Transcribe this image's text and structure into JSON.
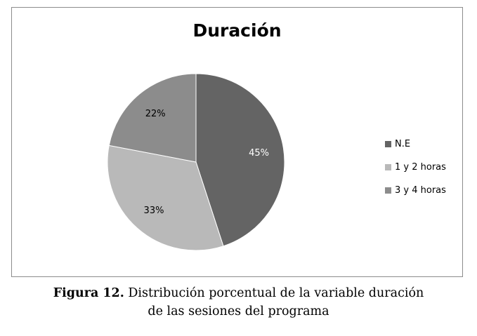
{
  "chart_data": {
    "type": "pie",
    "title": "Duración",
    "categories": [
      "N.E",
      "1 y 2 horas",
      "3 y 4 horas"
    ],
    "values": [
      45,
      33,
      22
    ],
    "labels": [
      "45%",
      "33%",
      "22%"
    ],
    "colors": [
      "#646464",
      "#b9b9b9",
      "#8c8c8c"
    ],
    "legend_position": "right"
  },
  "caption": {
    "figure_label": "Figura 12.",
    "line1": " Distribución porcentual de la variable duración",
    "line2": "de las sesiones del programa"
  }
}
